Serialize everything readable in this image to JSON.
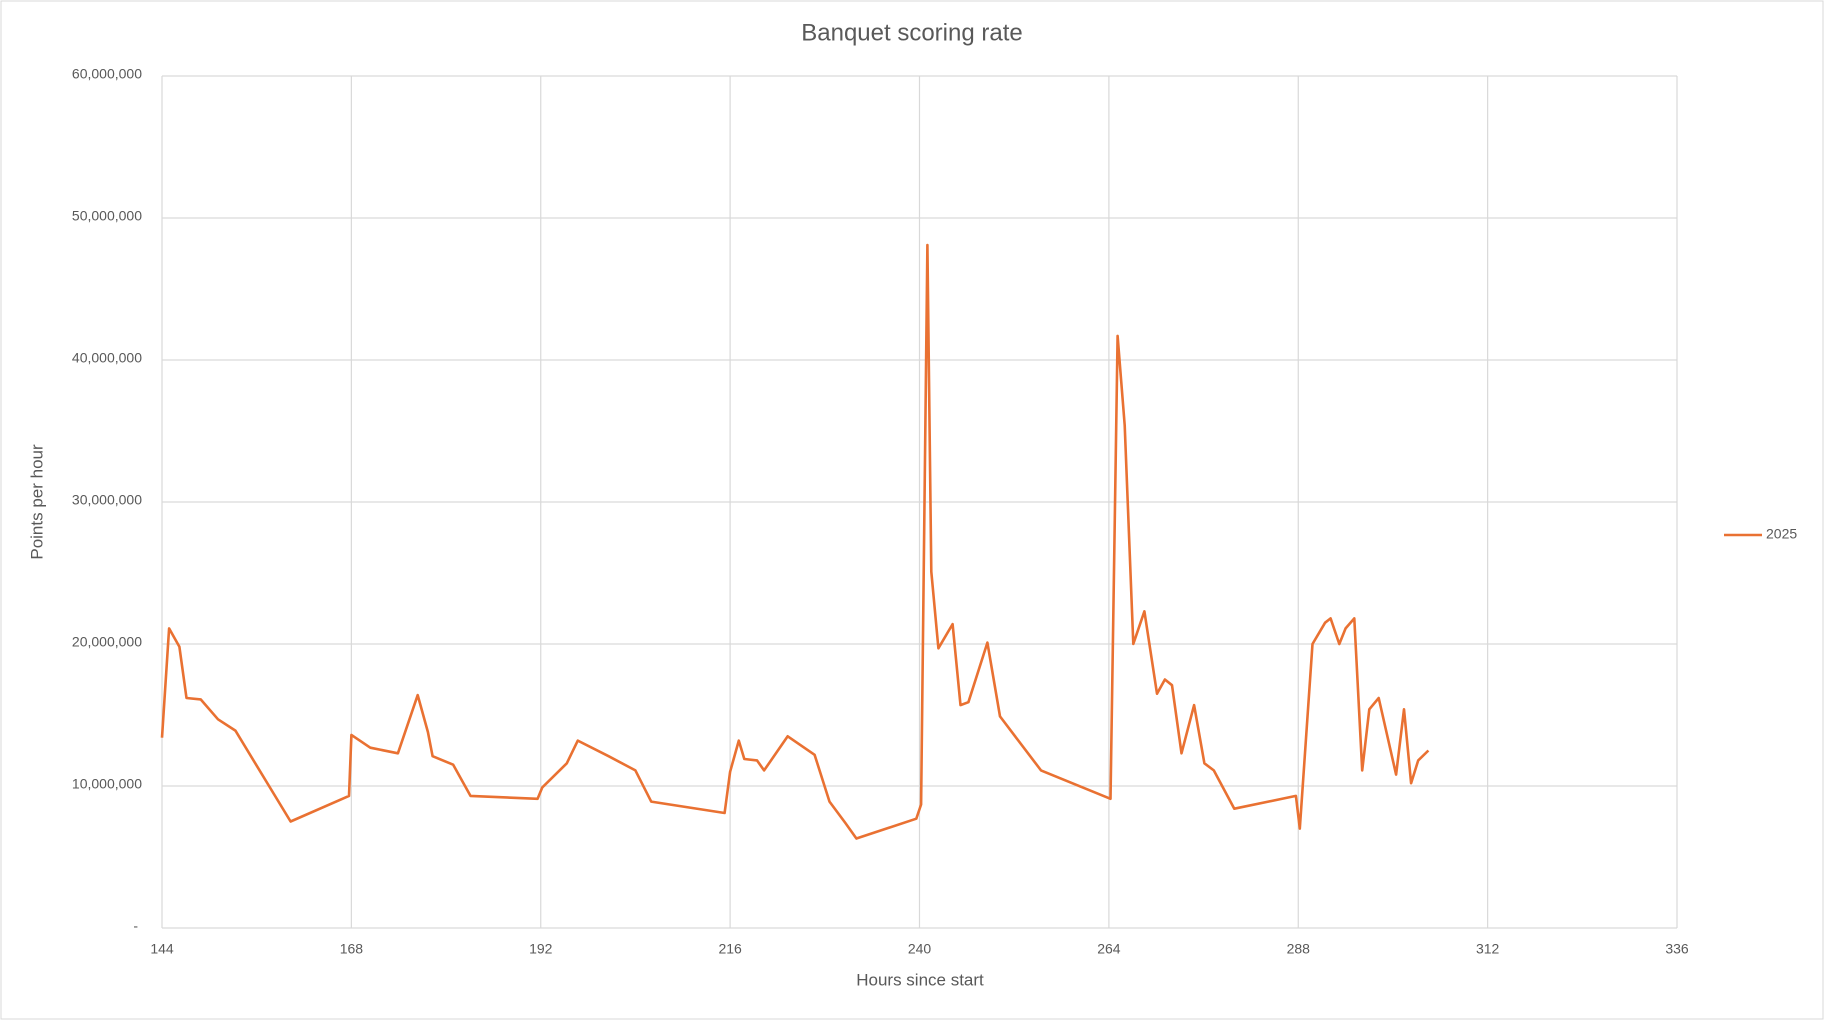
{
  "chart_data": {
    "type": "line",
    "title": "Banquet scoring rate",
    "x_label": "Hours since start",
    "y_label": "Points per hour",
    "x": [
      144,
      144.9,
      146.2,
      147.1,
      148.9,
      151.1,
      153.3,
      160.3,
      167.7,
      168,
      170.4,
      173.9,
      176.4,
      177.7,
      178.3,
      180.9,
      183.1,
      191.6,
      192.2,
      195.3,
      196.7,
      200.6,
      204,
      206,
      215.3,
      216,
      217.1,
      217.8,
      219.4,
      220.3,
      223.3,
      226.7,
      228.6,
      230.6,
      232,
      239.6,
      240.2,
      241,
      241.5,
      242.4,
      244.2,
      245.2,
      246.2,
      248.6,
      250.2,
      255.4,
      264.2,
      265.1,
      266,
      267.1,
      268.5,
      270.1,
      271.1,
      272,
      273.2,
      274.8,
      276.1,
      277.3,
      279.9,
      287.7,
      288.2,
      289.8,
      291.4,
      292.1,
      293.2,
      294,
      295.1,
      296.1,
      297,
      298.2,
      300.4,
      301.4,
      302.3,
      303.2,
      304.5
    ],
    "series": [
      {
        "name": "2025",
        "color": "#e97132",
        "values": [
          13400000,
          21100000,
          19800000,
          16200000,
          16100000,
          14700000,
          13900000,
          7500000,
          9300000,
          13600000,
          12700000,
          12300000,
          16400000,
          13800000,
          12100000,
          11500000,
          9300000,
          9100000,
          9900000,
          11600000,
          13200000,
          12100000,
          11100000,
          8900000,
          8100000,
          11000000,
          13200000,
          11900000,
          11800000,
          11100000,
          13500000,
          12200000,
          8900000,
          7400000,
          6300000,
          7700000,
          8700000,
          48100000,
          25100000,
          19700000,
          21400000,
          15700000,
          15900000,
          20100000,
          14900000,
          11100000,
          9100000,
          41700000,
          35400000,
          20000000,
          22300000,
          16500000,
          17500000,
          17100000,
          12300000,
          15700000,
          11600000,
          11100000,
          8400000,
          9300000,
          7000000,
          20000000,
          21500000,
          21800000,
          20000000,
          21100000,
          21800000,
          11100000,
          15400000,
          16200000,
          10800000,
          15400000,
          10200000,
          11800000,
          12500000
        ]
      }
    ],
    "xlim": [
      144,
      336
    ],
    "xticks": [
      144,
      168,
      192,
      216,
      240,
      264,
      288,
      312,
      336
    ],
    "ylim": [
      0,
      60000000
    ],
    "yticks": [
      {
        "value": 0,
        "label": "-"
      },
      {
        "value": 10000000,
        "label": "10,000,000"
      },
      {
        "value": 20000000,
        "label": "20,000,000"
      },
      {
        "value": 30000000,
        "label": "30,000,000"
      },
      {
        "value": 40000000,
        "label": "40,000,000"
      },
      {
        "value": 50000000,
        "label": "50,000,000"
      },
      {
        "value": 60000000,
        "label": "60,000,000"
      }
    ],
    "grid": true,
    "legend": "right"
  }
}
